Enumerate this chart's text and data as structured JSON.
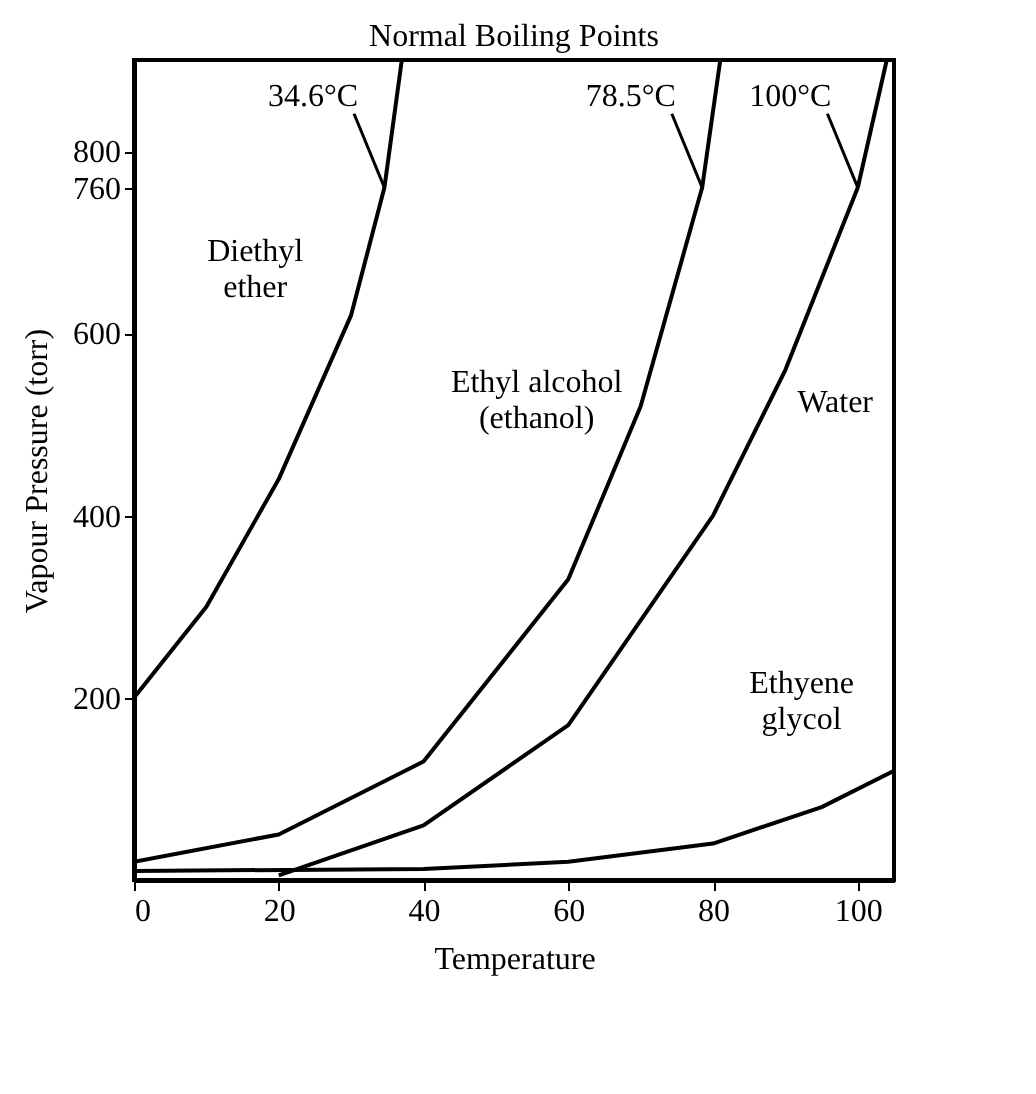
{
  "chart_data": {
    "type": "line",
    "title": "Normal Boiling Points",
    "xlabel": "Temperature",
    "ylabel": "Vapour Pressure (torr)",
    "xlim": [
      0,
      105
    ],
    "ylim": [
      0,
      900
    ],
    "xticks": [
      0,
      20,
      40,
      60,
      80,
      100
    ],
    "yticks": [
      200,
      400,
      600,
      760,
      800
    ],
    "grid": false,
    "marker": "none",
    "line_style": "solid",
    "series": [
      {
        "name": "Diethyl\nether",
        "color": "#000000",
        "x": [
          0,
          10,
          20,
          30,
          34.6,
          37
        ],
        "values": [
          200,
          300,
          440,
          620,
          760,
          900
        ]
      },
      {
        "name": "Ethyl alcohol\n(ethanol)",
        "color": "#000000",
        "x": [
          0,
          20,
          40,
          60,
          70,
          78.5,
          81
        ],
        "values": [
          20,
          50,
          130,
          330,
          520,
          760,
          900
        ]
      },
      {
        "name": "Water",
        "color": "#000000",
        "x": [
          20,
          40,
          60,
          80,
          90,
          100,
          104
        ],
        "values": [
          5,
          60,
          170,
          400,
          560,
          760,
          900
        ]
      },
      {
        "name": "Ethyene\nglycol",
        "color": "#000000",
        "x": [
          0,
          40,
          60,
          80,
          95,
          105
        ],
        "values": [
          10,
          12,
          20,
          40,
          80,
          120
        ]
      }
    ],
    "annotations": [
      {
        "text": "34.6°C",
        "x": 34.6,
        "y": 760
      },
      {
        "text": "78.5°C",
        "x": 78.5,
        "y": 760
      },
      {
        "text": "100°C",
        "x": 100,
        "y": 760
      }
    ]
  }
}
